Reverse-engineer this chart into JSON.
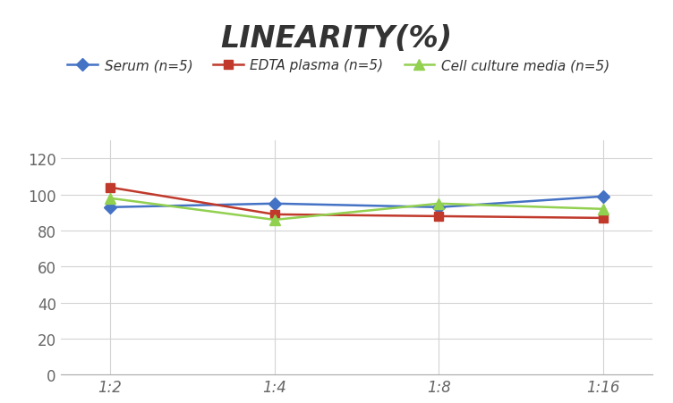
{
  "title": "LINEARITY(%)",
  "x_labels": [
    "1:2",
    "1:4",
    "1:8",
    "1:16"
  ],
  "x_positions": [
    0,
    1,
    2,
    3
  ],
  "series": [
    {
      "label": "Serum (n=5)",
      "values": [
        93,
        95,
        93,
        99
      ],
      "color": "#4472C4",
      "marker": "D",
      "marker_size": 7,
      "linestyle": "-"
    },
    {
      "label": "EDTA plasma (n=5)",
      "values": [
        104,
        89,
        88,
        87
      ],
      "color": "#C0392B",
      "marker": "s",
      "marker_size": 7,
      "linestyle": "-"
    },
    {
      "label": "Cell culture media (n=5)",
      "values": [
        98,
        86,
        95,
        92
      ],
      "color": "#92D050",
      "marker": "^",
      "marker_size": 8,
      "linestyle": "-"
    }
  ],
  "ylim": [
    0,
    130
  ],
  "yticks": [
    0,
    20,
    40,
    60,
    80,
    100,
    120
  ],
  "grid_color": "#D3D3D3",
  "background_color": "#FFFFFF",
  "title_fontsize": 24,
  "legend_fontsize": 11,
  "tick_fontsize": 12
}
